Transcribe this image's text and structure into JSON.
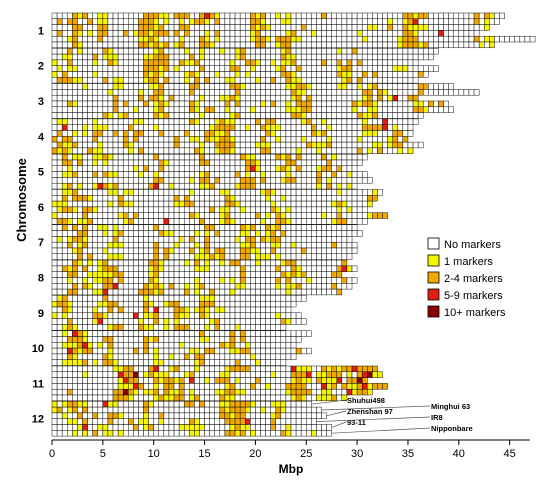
{
  "chart_data": {
    "type": "heatmap",
    "xlabel": "Mbp",
    "ylabel": "Chromosome",
    "xlim": [
      0,
      47
    ],
    "xticks": [
      0,
      5,
      10,
      15,
      20,
      25,
      30,
      35,
      40,
      45
    ],
    "bin_size_mbp": 0.5,
    "legend": {
      "placement": "right",
      "entries": [
        {
          "label": "No markers",
          "color": "#ffffff"
        },
        {
          "label": "1 markers",
          "color": "#f5f500"
        },
        {
          "label": "2-4 markers",
          "color": "#f0a800"
        },
        {
          "label": "5-9 markers",
          "color": "#e01d10"
        },
        {
          "label": "10+ markers",
          "color": "#8b0000"
        }
      ]
    },
    "genomes": [
      "Shuhui498",
      "Zhenshan 97",
      "93-11",
      "Minghui 63",
      "IR8",
      "Nipponbare"
    ],
    "chromosomes": [
      {
        "name": "1",
        "lengths": [
          44.5,
          44.0,
          43.0,
          42.0,
          47.5,
          43.3
        ],
        "hotspots": [
          [
            2,
            0.9
          ],
          [
            4.5,
            0.7
          ],
          [
            9.5,
            1.6
          ],
          [
            12.5,
            0.6
          ],
          [
            15,
            0.5
          ],
          [
            20,
            1.0
          ],
          [
            23,
            0.9
          ],
          [
            35,
            1.6
          ],
          [
            42.5,
            1.0
          ]
        ],
        "reds": [
          [
            15,
            0
          ],
          [
            35.5,
            1
          ],
          [
            43,
            2
          ],
          [
            38,
            3
          ]
        ],
        "density": 0.22
      },
      {
        "name": "2",
        "lengths": [
          38.0,
          37.5,
          36.0,
          38.0,
          37.0,
          36.0
        ],
        "hotspots": [
          [
            1.5,
            0.8
          ],
          [
            5,
            0.8
          ],
          [
            10,
            1.2
          ],
          [
            14,
            0.6
          ],
          [
            18,
            0.7
          ],
          [
            23,
            1.0
          ],
          [
            29,
            0.6
          ]
        ],
        "reds": [],
        "density": 0.22
      },
      {
        "name": "3",
        "lengths": [
          39.5,
          42.0,
          36.0,
          39.0,
          39.5,
          36.4
        ],
        "hotspots": [
          [
            6,
            0.6
          ],
          [
            10,
            1.0
          ],
          [
            14,
            0.6
          ],
          [
            18,
            0.7
          ],
          [
            24,
            1.5
          ],
          [
            31,
            1.0
          ],
          [
            36,
            0.8
          ]
        ],
        "reds": [
          [
            33.5,
            2
          ]
        ],
        "density": 0.2
      },
      {
        "name": "4",
        "lengths": [
          36.0,
          35.5,
          35.3,
          35.0,
          36.5,
          35.5
        ],
        "hotspots": [
          [
            1,
            0.9
          ],
          [
            4,
            0.6
          ],
          [
            8,
            0.6
          ],
          [
            14,
            0.6
          ],
          [
            16.5,
            1.2
          ],
          [
            21,
            0.7
          ],
          [
            26,
            0.6
          ],
          [
            31,
            0.6
          ],
          [
            33,
            0.7
          ]
        ],
        "reds": [
          [
            1,
            1
          ],
          [
            32.5,
            0
          ],
          [
            32.5,
            1
          ]
        ],
        "density": 0.22
      },
      {
        "name": "5",
        "lengths": [
          31.0,
          30.5,
          30.0,
          31.0,
          31.5,
          30.0
        ],
        "hotspots": [
          [
            2,
            0.6
          ],
          [
            5,
            0.7
          ],
          [
            10,
            0.6
          ],
          [
            15,
            0.8
          ],
          [
            19,
            1.0
          ],
          [
            23,
            0.7
          ],
          [
            27,
            0.6
          ]
        ],
        "reds": [
          [
            19.5,
            2
          ],
          [
            10,
            5
          ],
          [
            4.5,
            5
          ]
        ],
        "density": 0.18
      },
      {
        "name": "6",
        "lengths": [
          32.5,
          32.0,
          31.5,
          31.0,
          32.8,
          31.2
        ],
        "hotspots": [
          [
            1,
            0.9
          ],
          [
            3,
            0.8
          ],
          [
            7,
            0.6
          ],
          [
            13,
            0.6
          ],
          [
            17,
            0.7
          ],
          [
            22,
            0.6
          ],
          [
            28,
            0.7
          ],
          [
            31.5,
            0.6
          ]
        ],
        "reds": [
          [
            11,
            5
          ],
          [
            32,
            3
          ]
        ],
        "density": 0.2
      },
      {
        "name": "7",
        "lengths": [
          30.0,
          30.5,
          29.5,
          30.0,
          30.0,
          29.7
        ],
        "hotspots": [
          [
            2.5,
            0.8
          ],
          [
            6,
            0.7
          ],
          [
            11,
            0.6
          ],
          [
            15,
            1.0
          ],
          [
            19,
            0.9
          ],
          [
            21.5,
            0.6
          ]
        ],
        "reds": [],
        "density": 0.16
      },
      {
        "name": "8",
        "lengths": [
          29.0,
          30.0,
          28.5,
          30.0,
          29.5,
          28.4
        ],
        "hotspots": [
          [
            2,
            0.8
          ],
          [
            5,
            1.2
          ],
          [
            10,
            1.2
          ],
          [
            14,
            0.6
          ],
          [
            18,
            0.6
          ],
          [
            23,
            0.8
          ],
          [
            28.5,
            0.7
          ]
        ],
        "reds": [
          [
            29,
            0
          ],
          [
            28.5,
            1
          ],
          [
            29,
            2
          ],
          [
            6,
            4
          ],
          [
            5,
            5
          ]
        ],
        "density": 0.22
      },
      {
        "name": "9",
        "lengths": [
          25.0,
          24.0,
          23.5,
          24.5,
          25.0,
          23.0
        ],
        "hotspots": [
          [
            1,
            0.6
          ],
          [
            5,
            0.6
          ],
          [
            9,
            0.9
          ],
          [
            12,
            0.7
          ],
          [
            15,
            0.5
          ]
        ],
        "reds": [
          [
            8,
            3
          ],
          [
            10,
            2
          ],
          [
            4.5,
            4
          ]
        ],
        "density": 0.16
      },
      {
        "name": "10",
        "lengths": [
          25.5,
          24.5,
          24.0,
          25.5,
          24.0,
          23.2
        ],
        "hotspots": [
          [
            2,
            1.0
          ],
          [
            5,
            0.6
          ],
          [
            10,
            0.6
          ],
          [
            14,
            0.6
          ],
          [
            18,
            0.5
          ]
        ],
        "reds": [
          [
            2,
            0
          ],
          [
            1.5,
            3
          ],
          [
            3,
            2
          ]
        ],
        "density": 0.16
      },
      {
        "name": "11",
        "lengths": [
          32.0,
          32.5,
          31.0,
          32.8,
          31.5,
          29.0
        ],
        "hotspots": [
          [
            7,
            1.4
          ],
          [
            10,
            1.0
          ],
          [
            12,
            0.8
          ],
          [
            17,
            0.8
          ],
          [
            24,
            1.6
          ],
          [
            27,
            1.2
          ],
          [
            30,
            1.4
          ],
          [
            31.5,
            0.8
          ]
        ],
        "reds": [
          [
            6.5,
            1
          ],
          [
            7,
            2
          ],
          [
            8,
            3
          ],
          [
            10,
            0
          ],
          [
            13.5,
            2
          ],
          [
            23.5,
            0
          ],
          [
            25,
            1
          ],
          [
            26.5,
            3
          ],
          [
            28,
            2
          ],
          [
            29.5,
            0
          ],
          [
            30.5,
            1
          ],
          [
            30.5,
            3
          ],
          [
            31,
            2
          ],
          [
            29,
            4
          ]
        ],
        "reds_dark": [
          [
            8,
            1
          ],
          [
            30,
            2
          ],
          [
            31,
            1
          ],
          [
            7,
            4
          ]
        ],
        "density": 0.34
      },
      {
        "name": "12",
        "lengths": [
          25.5,
          26.5,
          27.0,
          26.0,
          27.5,
          27.5
        ],
        "hotspots": [
          [
            2,
            0.8
          ],
          [
            5.5,
            0.6
          ],
          [
            9,
            0.6
          ],
          [
            14,
            0.6
          ],
          [
            18,
            1.5
          ],
          [
            22,
            0.7
          ]
        ],
        "reds": [
          [
            5,
            0
          ],
          [
            19,
            3
          ],
          [
            3,
            4
          ]
        ],
        "density": 0.2
      }
    ],
    "annotations_left": [
      "Shuhui498",
      "Zhenshan 97",
      "93-11"
    ],
    "annotations_right": [
      "Minghui 63",
      "IR8",
      "Nipponbare"
    ]
  }
}
